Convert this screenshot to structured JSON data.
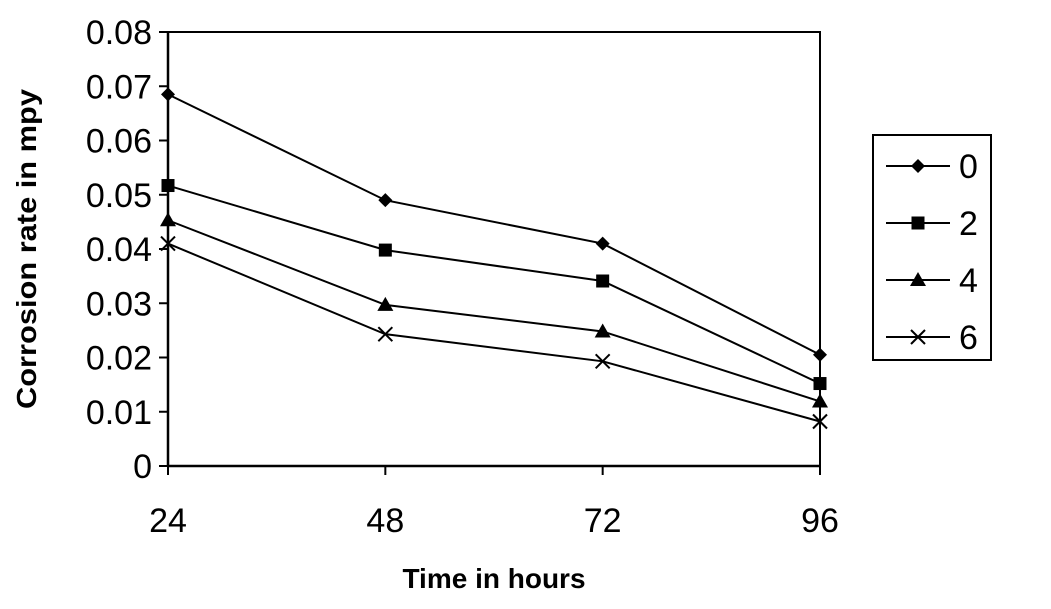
{
  "chart_data": {
    "type": "line",
    "title": "",
    "xlabel": "Time  in hours",
    "ylabel": "Corrosion rate in mpy",
    "categories": [
      "24",
      "48",
      "72",
      "96"
    ],
    "ylim": [
      0,
      0.08
    ],
    "yticks": [
      "0",
      "0.01",
      "0.02",
      "0.03",
      "0.04",
      "0.05",
      "0.06",
      "0.07",
      "0.08"
    ],
    "grid": false,
    "legend": "right",
    "series": [
      {
        "name": "0",
        "marker": "diamond",
        "values": [
          0.0685,
          0.049,
          0.041,
          0.0205
        ]
      },
      {
        "name": "2",
        "marker": "square",
        "values": [
          0.0517,
          0.0398,
          0.0341,
          0.0152
        ]
      },
      {
        "name": "4",
        "marker": "triangle",
        "values": [
          0.0453,
          0.0297,
          0.0248,
          0.0119
        ]
      },
      {
        "name": "6",
        "marker": "x",
        "values": [
          0.041,
          0.0243,
          0.0193,
          0.0082
        ]
      }
    ],
    "colors": {
      "line": "#000000",
      "background": "#ffffff"
    }
  }
}
